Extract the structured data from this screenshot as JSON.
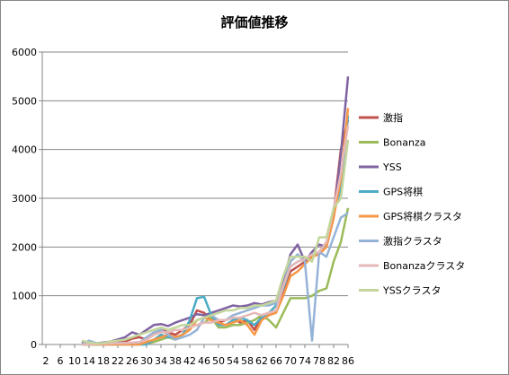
{
  "chart_data": {
    "type": "line",
    "title": "評価値推移",
    "xlabel": "",
    "ylabel": "",
    "ylim": [
      0,
      6000
    ],
    "yticks": [
      0,
      1000,
      2000,
      3000,
      4000,
      5000,
      6000
    ],
    "xticks": [
      2,
      6,
      10,
      14,
      18,
      22,
      26,
      30,
      34,
      38,
      42,
      46,
      50,
      54,
      58,
      62,
      66,
      70,
      74,
      78,
      82,
      86
    ],
    "xlim": [
      1,
      86
    ],
    "grid": "horizontal",
    "legend": "right",
    "series": [
      {
        "name": "激指",
        "color": "#C0504D",
        "points": [
          [
            12,
            10
          ],
          [
            16,
            20
          ],
          [
            20,
            40
          ],
          [
            24,
            60
          ],
          [
            26,
            120
          ],
          [
            28,
            150
          ],
          [
            30,
            100
          ],
          [
            32,
            200
          ],
          [
            34,
            300
          ],
          [
            36,
            250
          ],
          [
            38,
            200
          ],
          [
            40,
            300
          ],
          [
            42,
            400
          ],
          [
            44,
            700
          ],
          [
            46,
            650
          ],
          [
            48,
            500
          ],
          [
            50,
            450
          ],
          [
            52,
            500
          ],
          [
            54,
            550
          ],
          [
            56,
            450
          ],
          [
            58,
            500
          ],
          [
            60,
            300
          ],
          [
            62,
            600
          ],
          [
            64,
            650
          ],
          [
            66,
            700
          ],
          [
            68,
            1100
          ],
          [
            70,
            1500
          ],
          [
            72,
            1600
          ],
          [
            74,
            1700
          ],
          [
            76,
            1800
          ],
          [
            78,
            1900
          ],
          [
            80,
            2100
          ],
          [
            82,
            2700
          ],
          [
            84,
            4000
          ],
          [
            86,
            4600
          ]
        ]
      },
      {
        "name": "Bonanza",
        "color": "#9BBB59",
        "points": [
          [
            12,
            0
          ],
          [
            16,
            0
          ],
          [
            20,
            10
          ],
          [
            24,
            20
          ],
          [
            28,
            30
          ],
          [
            30,
            20
          ],
          [
            32,
            50
          ],
          [
            34,
            100
          ],
          [
            36,
            150
          ],
          [
            38,
            100
          ],
          [
            40,
            200
          ],
          [
            42,
            350
          ],
          [
            44,
            400
          ],
          [
            46,
            450
          ],
          [
            48,
            550
          ],
          [
            50,
            350
          ],
          [
            52,
            350
          ],
          [
            54,
            400
          ],
          [
            56,
            400
          ],
          [
            58,
            450
          ],
          [
            60,
            500
          ],
          [
            62,
            600
          ],
          [
            64,
            500
          ],
          [
            66,
            350
          ],
          [
            68,
            650
          ],
          [
            70,
            950
          ],
          [
            72,
            950
          ],
          [
            74,
            950
          ],
          [
            76,
            1000
          ],
          [
            78,
            1100
          ],
          [
            80,
            1150
          ],
          [
            82,
            1700
          ],
          [
            84,
            2100
          ],
          [
            86,
            2800
          ]
        ]
      },
      {
        "name": "YSS",
        "color": "#8064A2",
        "points": [
          [
            12,
            30
          ],
          [
            14,
            60
          ],
          [
            16,
            20
          ],
          [
            18,
            40
          ],
          [
            20,
            60
          ],
          [
            24,
            150
          ],
          [
            26,
            250
          ],
          [
            28,
            200
          ],
          [
            30,
            300
          ],
          [
            32,
            400
          ],
          [
            34,
            420
          ],
          [
            36,
            380
          ],
          [
            38,
            450
          ],
          [
            40,
            500
          ],
          [
            42,
            550
          ],
          [
            44,
            620
          ],
          [
            46,
            600
          ],
          [
            48,
            650
          ],
          [
            50,
            700
          ],
          [
            52,
            750
          ],
          [
            54,
            800
          ],
          [
            56,
            780
          ],
          [
            58,
            800
          ],
          [
            60,
            850
          ],
          [
            62,
            820
          ],
          [
            64,
            870
          ],
          [
            66,
            900
          ],
          [
            68,
            1300
          ],
          [
            70,
            1850
          ],
          [
            72,
            2050
          ],
          [
            74,
            1700
          ],
          [
            76,
            1900
          ],
          [
            78,
            2050
          ],
          [
            80,
            2000
          ],
          [
            82,
            2600
          ],
          [
            84,
            3900
          ],
          [
            86,
            5500
          ]
        ]
      },
      {
        "name": "GPS将棋",
        "color": "#4BACC6",
        "points": [
          [
            12,
            0
          ],
          [
            16,
            0
          ],
          [
            20,
            0
          ],
          [
            24,
            0
          ],
          [
            28,
            0
          ],
          [
            30,
            0
          ],
          [
            32,
            100
          ],
          [
            34,
            200
          ],
          [
            36,
            150
          ],
          [
            38,
            150
          ],
          [
            40,
            200
          ],
          [
            42,
            500
          ],
          [
            44,
            950
          ],
          [
            46,
            980
          ],
          [
            48,
            600
          ],
          [
            50,
            400
          ],
          [
            52,
            400
          ],
          [
            54,
            500
          ],
          [
            56,
            550
          ],
          [
            58,
            500
          ],
          [
            60,
            400
          ],
          [
            62,
            550
          ],
          [
            64,
            650
          ],
          [
            66,
            800
          ],
          [
            68,
            1150
          ],
          [
            70,
            1600
          ],
          [
            72,
            1700
          ],
          [
            74,
            1750
          ],
          [
            76,
            1850
          ],
          [
            78,
            1850
          ],
          [
            80,
            2100
          ],
          [
            82,
            2700
          ],
          [
            84,
            3200
          ],
          [
            86,
            4700
          ]
        ]
      },
      {
        "name": "GPS将棋クラスタ",
        "color": "#F79646",
        "points": [
          [
            12,
            0
          ],
          [
            16,
            0
          ],
          [
            20,
            0
          ],
          [
            24,
            0
          ],
          [
            28,
            0
          ],
          [
            30,
            50
          ],
          [
            32,
            100
          ],
          [
            34,
            150
          ],
          [
            36,
            200
          ],
          [
            38,
            150
          ],
          [
            40,
            200
          ],
          [
            42,
            300
          ],
          [
            44,
            500
          ],
          [
            46,
            550
          ],
          [
            48,
            500
          ],
          [
            50,
            450
          ],
          [
            52,
            400
          ],
          [
            54,
            450
          ],
          [
            56,
            500
          ],
          [
            58,
            400
          ],
          [
            60,
            200
          ],
          [
            62,
            500
          ],
          [
            64,
            600
          ],
          [
            66,
            650
          ],
          [
            68,
            1000
          ],
          [
            70,
            1400
          ],
          [
            72,
            1500
          ],
          [
            74,
            1650
          ],
          [
            76,
            1800
          ],
          [
            78,
            1850
          ],
          [
            80,
            2000
          ],
          [
            82,
            2600
          ],
          [
            84,
            3400
          ],
          [
            86,
            4850
          ]
        ]
      },
      {
        "name": "激指クラスタ",
        "color": "#95B3D7",
        "points": [
          [
            12,
            0
          ],
          [
            14,
            80
          ],
          [
            16,
            30
          ],
          [
            18,
            20
          ],
          [
            20,
            30
          ],
          [
            24,
            30
          ],
          [
            28,
            40
          ],
          [
            30,
            150
          ],
          [
            32,
            250
          ],
          [
            34,
            300
          ],
          [
            36,
            200
          ],
          [
            38,
            100
          ],
          [
            40,
            150
          ],
          [
            42,
            200
          ],
          [
            44,
            300
          ],
          [
            46,
            550
          ],
          [
            48,
            600
          ],
          [
            50,
            500
          ],
          [
            52,
            500
          ],
          [
            54,
            600
          ],
          [
            56,
            650
          ],
          [
            58,
            700
          ],
          [
            60,
            750
          ],
          [
            62,
            800
          ],
          [
            64,
            800
          ],
          [
            66,
            850
          ],
          [
            68,
            1200
          ],
          [
            70,
            1700
          ],
          [
            72,
            1850
          ],
          [
            74,
            1700
          ],
          [
            76,
            80
          ],
          [
            78,
            1900
          ],
          [
            80,
            1800
          ],
          [
            82,
            2200
          ],
          [
            84,
            2600
          ],
          [
            86,
            2700
          ]
        ]
      },
      {
        "name": "Bonanzaクラスタ",
        "color": "#E6B9B8",
        "points": [
          [
            12,
            0
          ],
          [
            16,
            10
          ],
          [
            20,
            20
          ],
          [
            24,
            30
          ],
          [
            28,
            50
          ],
          [
            30,
            100
          ],
          [
            32,
            200
          ],
          [
            34,
            250
          ],
          [
            36,
            250
          ],
          [
            38,
            300
          ],
          [
            40,
            300
          ],
          [
            42,
            350
          ],
          [
            44,
            400
          ],
          [
            46,
            450
          ],
          [
            48,
            450
          ],
          [
            50,
            500
          ],
          [
            52,
            500
          ],
          [
            54,
            550
          ],
          [
            56,
            550
          ],
          [
            58,
            600
          ],
          [
            60,
            650
          ],
          [
            62,
            600
          ],
          [
            64,
            650
          ],
          [
            66,
            700
          ],
          [
            68,
            1200
          ],
          [
            70,
            1600
          ],
          [
            72,
            1700
          ],
          [
            74,
            1750
          ],
          [
            76,
            1850
          ],
          [
            78,
            1900
          ],
          [
            80,
            2100
          ],
          [
            82,
            2800
          ],
          [
            84,
            3500
          ],
          [
            86,
            4500
          ]
        ]
      },
      {
        "name": "YSSクラスタ",
        "color": "#C3D69B",
        "points": [
          [
            12,
            80
          ],
          [
            14,
            40
          ],
          [
            16,
            20
          ],
          [
            18,
            30
          ],
          [
            20,
            60
          ],
          [
            24,
            100
          ],
          [
            26,
            150
          ],
          [
            28,
            200
          ],
          [
            30,
            250
          ],
          [
            32,
            300
          ],
          [
            34,
            350
          ],
          [
            36,
            300
          ],
          [
            38,
            350
          ],
          [
            40,
            400
          ],
          [
            42,
            400
          ],
          [
            44,
            500
          ],
          [
            46,
            550
          ],
          [
            48,
            600
          ],
          [
            50,
            650
          ],
          [
            52,
            700
          ],
          [
            54,
            700
          ],
          [
            56,
            750
          ],
          [
            58,
            750
          ],
          [
            60,
            800
          ],
          [
            62,
            800
          ],
          [
            64,
            850
          ],
          [
            66,
            900
          ],
          [
            68,
            1400
          ],
          [
            70,
            1800
          ],
          [
            72,
            1800
          ],
          [
            74,
            1800
          ],
          [
            76,
            1700
          ],
          [
            78,
            2200
          ],
          [
            80,
            2200
          ],
          [
            82,
            2800
          ],
          [
            84,
            3000
          ],
          [
            86,
            4200
          ]
        ]
      }
    ]
  }
}
